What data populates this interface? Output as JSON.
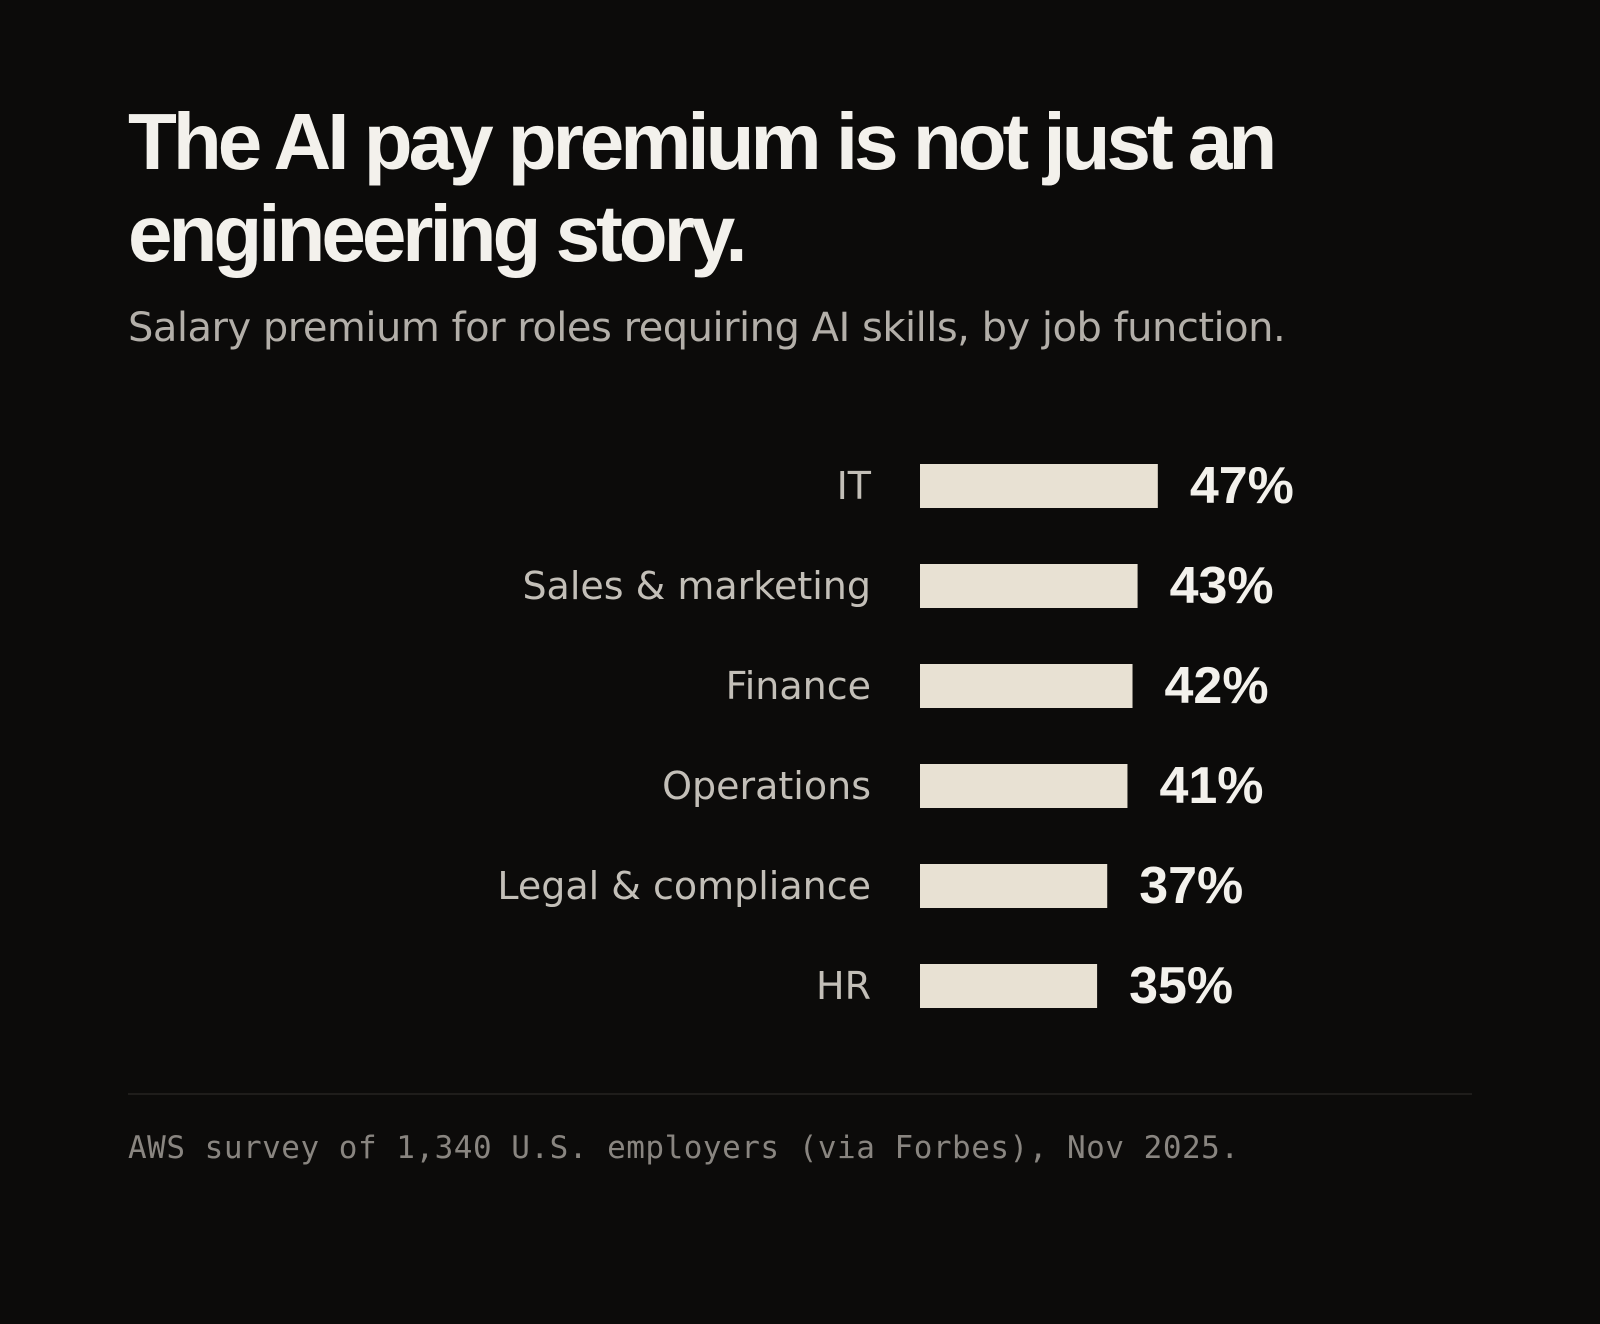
{
  "header": {
    "title": "The AI pay premium is not just an engineering story.",
    "subtitle": "Salary premium for roles requiring AI skills, by job function."
  },
  "footer": {
    "source": "AWS survey of 1,340 U.S. employers (via Forbes), Nov 2025."
  },
  "colors": {
    "background": "#0c0b0a",
    "bar": "#e8e1d3",
    "value_text": "#f3f1ec",
    "category_text": "#c3bfb8"
  },
  "chart_data": {
    "type": "bar",
    "orientation": "horizontal",
    "title": "The AI pay premium is not just an engineering story.",
    "subtitle": "Salary premium for roles requiring AI skills, by job function.",
    "categories": [
      "IT",
      "Sales & marketing",
      "Finance",
      "Operations",
      "Legal & compliance",
      "HR"
    ],
    "values": [
      47,
      43,
      42,
      41,
      37,
      35
    ],
    "value_labels": [
      "47%",
      "43%",
      "42%",
      "41%",
      "37%",
      "35%"
    ],
    "xlabel": "",
    "ylabel": "",
    "grid": false,
    "legend": "none"
  }
}
